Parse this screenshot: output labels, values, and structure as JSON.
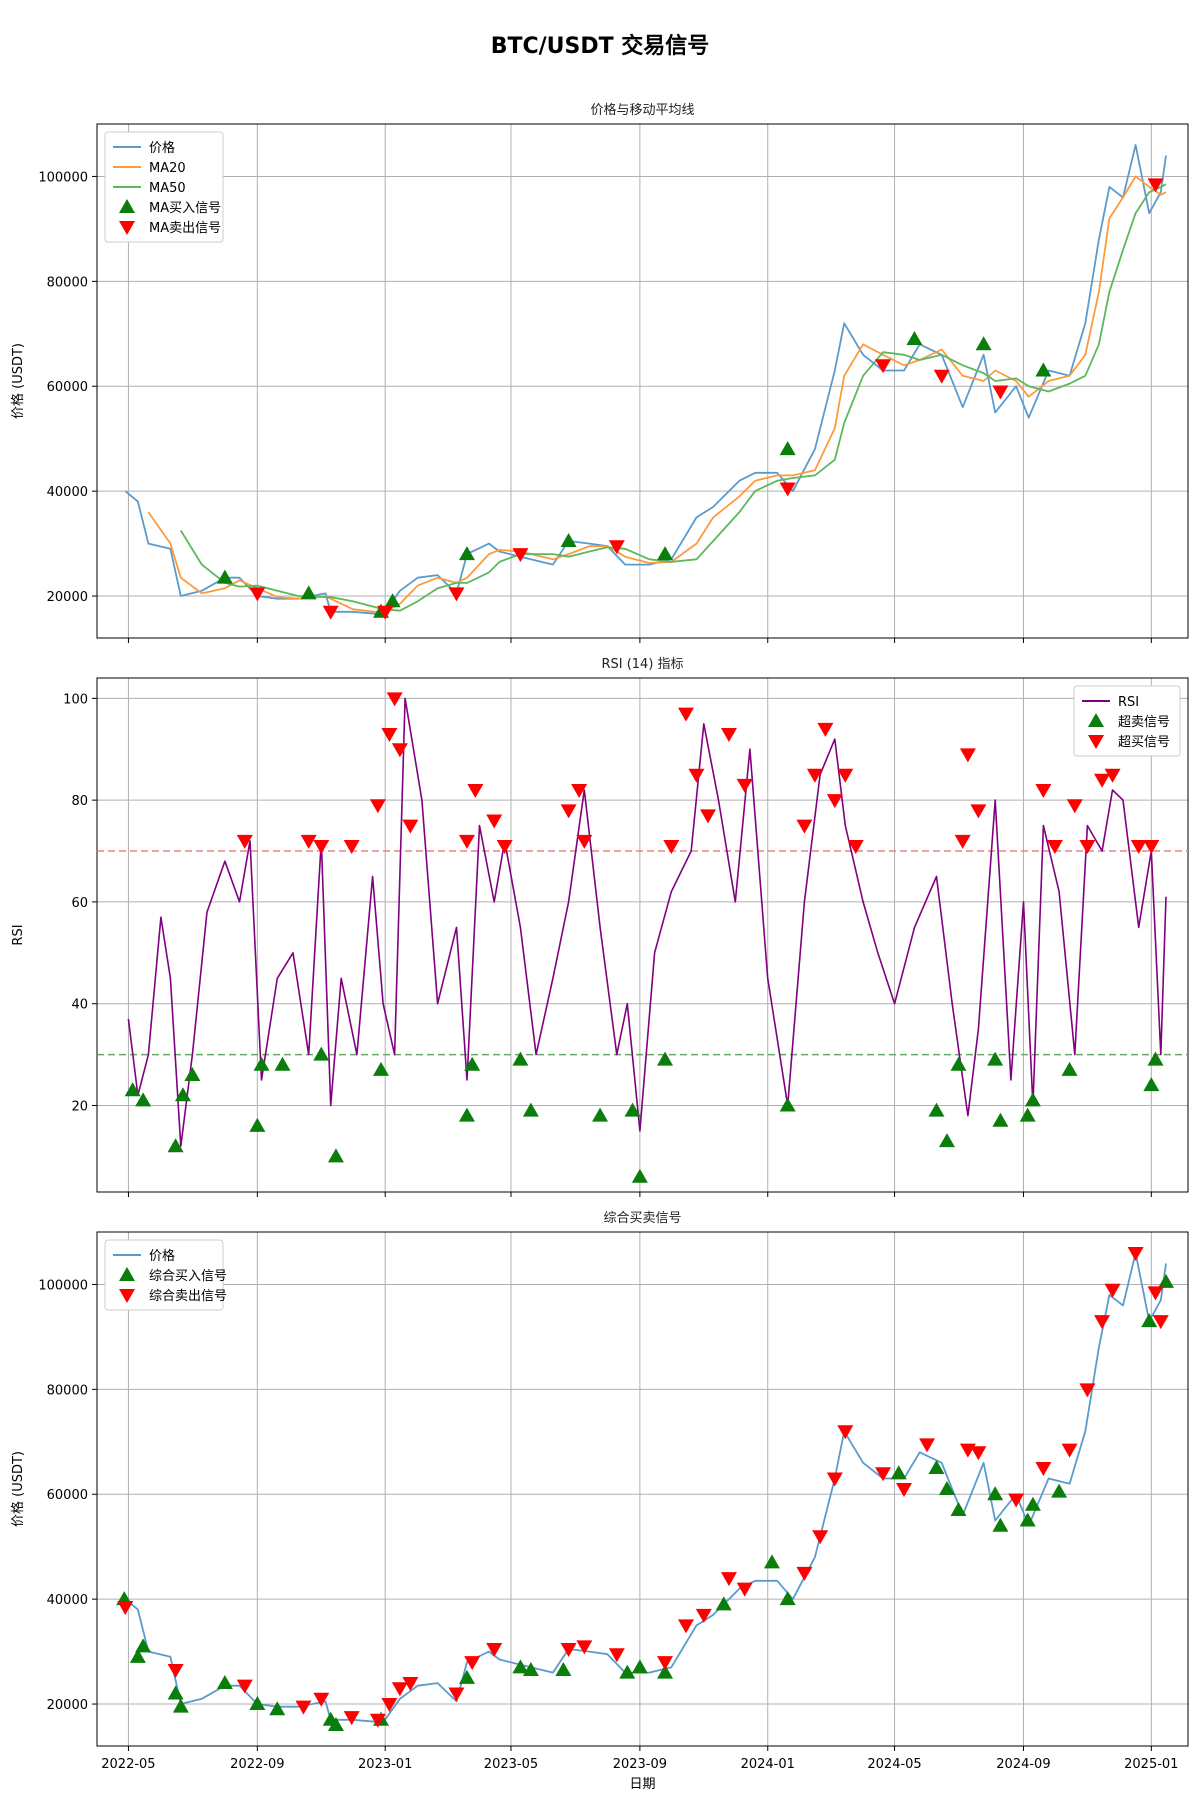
{
  "figure": {
    "title": "BTC/USDT 交易信号"
  },
  "x_axis": {
    "label": "日期",
    "ticks": [
      "2022-05",
      "2022-09",
      "2023-01",
      "2023-05",
      "2023-09",
      "2024-01",
      "2024-05",
      "2024-09",
      "2025-01"
    ]
  },
  "colors": {
    "price": "#5b9bcc",
    "ma20": "#ff9a3c",
    "ma50": "#5cb85c",
    "rsi": "#800080",
    "buy": "#0a7d0a",
    "sell": "#ff0000",
    "overbought_line": "#f08080",
    "oversold_line": "#66aa66",
    "grid": "#b0b0b0"
  },
  "chart_data": [
    {
      "type": "line",
      "title": "价格与移动平均线",
      "ylabel": "价格 (USDT)",
      "ylim": [
        12000,
        110000
      ],
      "yticks": [
        20000,
        40000,
        60000,
        80000,
        100000
      ],
      "grid": true,
      "legend_position": "top-left",
      "legend": [
        "价格",
        "MA20",
        "MA50",
        "MA买入信号",
        "MA卖出信号"
      ],
      "x": [
        "2022-04-28",
        "2022-05-10",
        "2022-05-20",
        "2022-06-10",
        "2022-06-20",
        "2022-07-10",
        "2022-08-01",
        "2022-08-15",
        "2022-09-01",
        "2022-09-20",
        "2022-10-10",
        "2022-11-05",
        "2022-11-10",
        "2022-12-01",
        "2022-12-30",
        "2023-01-15",
        "2023-02-01",
        "2023-02-20",
        "2023-03-10",
        "2023-03-20",
        "2023-04-10",
        "2023-04-20",
        "2023-05-10",
        "2023-06-10",
        "2023-06-25",
        "2023-07-15",
        "2023-08-01",
        "2023-08-18",
        "2023-09-10",
        "2023-10-01",
        "2023-10-25",
        "2023-11-10",
        "2023-12-05",
        "2023-12-20",
        "2024-01-10",
        "2024-01-25",
        "2024-02-15",
        "2024-03-05",
        "2024-03-14",
        "2024-04-01",
        "2024-04-20",
        "2024-05-10",
        "2024-05-25",
        "2024-06-15",
        "2024-07-05",
        "2024-07-25",
        "2024-08-05",
        "2024-08-25",
        "2024-09-06",
        "2024-09-25",
        "2024-10-15",
        "2024-10-30",
        "2024-11-12",
        "2024-11-22",
        "2024-12-05",
        "2024-12-17",
        "2024-12-30",
        "2025-01-10",
        "2025-01-15"
      ],
      "series": [
        {
          "name": "价格",
          "values": [
            40000,
            38000,
            30000,
            29000,
            20000,
            21000,
            23500,
            23500,
            20000,
            19500,
            19500,
            20500,
            17000,
            17000,
            16500,
            21000,
            23500,
            24000,
            20500,
            28000,
            30000,
            28500,
            27500,
            26000,
            30500,
            30000,
            29500,
            26000,
            26000,
            27000,
            35000,
            37000,
            42000,
            43500,
            43500,
            40000,
            48000,
            63000,
            72000,
            66000,
            63000,
            63000,
            68000,
            66000,
            56000,
            66000,
            55000,
            60000,
            54000,
            63000,
            62000,
            72000,
            88000,
            98000,
            96000,
            106000,
            93000,
            97000,
            104000
          ]
        },
        {
          "name": "MA20",
          "values": [
            null,
            null,
            36000,
            30000,
            23500,
            20500,
            21500,
            23000,
            21500,
            19800,
            19500,
            20000,
            19500,
            17500,
            16800,
            18500,
            22000,
            23500,
            22500,
            23500,
            28000,
            28800,
            28500,
            27000,
            28000,
            29500,
            29500,
            27500,
            26300,
            26500,
            30000,
            35000,
            39000,
            42000,
            43000,
            43000,
            44000,
            52000,
            62000,
            68000,
            66000,
            64000,
            65000,
            67000,
            62000,
            61000,
            63000,
            61000,
            58000,
            61000,
            62000,
            66000,
            78000,
            92000,
            96000,
            100000,
            98000,
            96500,
            97000
          ]
        },
        {
          "name": "MA50",
          "values": [
            null,
            null,
            null,
            null,
            32500,
            26000,
            22500,
            21800,
            22000,
            21000,
            20000,
            19800,
            19800,
            19000,
            17500,
            17200,
            19000,
            21500,
            22500,
            22500,
            24500,
            26500,
            28000,
            28000,
            27500,
            28500,
            29300,
            29000,
            27000,
            26500,
            27000,
            30500,
            36000,
            40000,
            42000,
            42500,
            43000,
            46000,
            53000,
            62000,
            66500,
            66000,
            65000,
            66000,
            64000,
            62500,
            61000,
            61500,
            60000,
            59000,
            60500,
            62000,
            68000,
            78000,
            86000,
            93000,
            97000,
            98000,
            98500
          ]
        }
      ],
      "buy_signals": {
        "name": "MA买入信号",
        "x": [
          "2022-08-01",
          "2022-10-20",
          "2022-12-28",
          "2023-01-08",
          "2023-03-20",
          "2023-06-25",
          "2023-09-25",
          "2024-01-20",
          "2024-05-20",
          "2024-07-25",
          "2024-09-20"
        ],
        "y": [
          23500,
          20500,
          17000,
          19000,
          28000,
          30500,
          28000,
          48000,
          69000,
          68000,
          63000
        ]
      },
      "sell_signals": {
        "name": "MA卖出信号",
        "x": [
          "2022-09-01",
          "2022-11-10",
          "2023-01-01",
          "2023-03-10",
          "2023-05-10",
          "2023-08-10",
          "2024-01-20",
          "2024-04-20",
          "2024-06-15",
          "2024-08-10",
          "2025-01-05"
        ],
        "y": [
          20500,
          17000,
          17000,
          20500,
          28000,
          29500,
          40500,
          64000,
          62000,
          59000,
          98500
        ]
      }
    },
    {
      "type": "line",
      "title": "RSI (14) 指标",
      "ylabel": "RSI",
      "ylim": [
        3,
        104
      ],
      "yticks": [
        20,
        40,
        60,
        80,
        100
      ],
      "grid": true,
      "legend_position": "top-right",
      "legend": [
        "RSI",
        "超卖信号",
        "超买信号"
      ],
      "reference_lines": [
        70,
        30
      ],
      "x": [
        "2022-05-01",
        "2022-05-10",
        "2022-05-20",
        "2022-06-01",
        "2022-06-10",
        "2022-06-20",
        "2022-07-01",
        "2022-07-15",
        "2022-08-01",
        "2022-08-15",
        "2022-08-25",
        "2022-09-05",
        "2022-09-20",
        "2022-10-05",
        "2022-10-20",
        "2022-11-01",
        "2022-11-10",
        "2022-11-20",
        "2022-12-05",
        "2022-12-20",
        "2022-12-30",
        "2023-01-10",
        "2023-01-20",
        "2023-02-05",
        "2023-02-20",
        "2023-03-10",
        "2023-03-20",
        "2023-04-01",
        "2023-04-15",
        "2023-04-25",
        "2023-05-10",
        "2023-05-25",
        "2023-06-10",
        "2023-06-25",
        "2023-07-10",
        "2023-07-25",
        "2023-08-10",
        "2023-08-20",
        "2023-09-01",
        "2023-09-15",
        "2023-10-01",
        "2023-10-20",
        "2023-11-01",
        "2023-11-15",
        "2023-12-01",
        "2023-12-15",
        "2024-01-01",
        "2024-01-20",
        "2024-02-05",
        "2024-02-20",
        "2024-03-05",
        "2024-03-15",
        "2024-04-01",
        "2024-04-15",
        "2024-05-01",
        "2024-05-20",
        "2024-06-10",
        "2024-06-25",
        "2024-07-10",
        "2024-07-20",
        "2024-08-05",
        "2024-08-20",
        "2024-09-01",
        "2024-09-10",
        "2024-09-20",
        "2024-10-05",
        "2024-10-20",
        "2024-11-01",
        "2024-11-15",
        "2024-11-25",
        "2024-12-05",
        "2024-12-20",
        "2025-01-01",
        "2025-01-10",
        "2025-01-15"
      ],
      "values": [
        37,
        22,
        30,
        57,
        45,
        12,
        30,
        58,
        68,
        60,
        72,
        25,
        45,
        50,
        30,
        72,
        20,
        45,
        30,
        65,
        40,
        30,
        100,
        80,
        40,
        55,
        25,
        75,
        60,
        72,
        55,
        30,
        45,
        60,
        82,
        55,
        30,
        40,
        15,
        50,
        62,
        70,
        95,
        80,
        60,
        90,
        45,
        20,
        60,
        85,
        92,
        75,
        60,
        50,
        40,
        55,
        65,
        40,
        18,
        35,
        80,
        25,
        60,
        20,
        75,
        62,
        30,
        75,
        70,
        82,
        80,
        55,
        70,
        30,
        61
      ],
      "oversold_signals": {
        "name": "超卖信号",
        "x": [
          "2022-05-05",
          "2022-05-15",
          "2022-06-15",
          "2022-06-22",
          "2022-07-01",
          "2022-09-01",
          "2022-09-05",
          "2022-09-25",
          "2022-11-01",
          "2022-11-15",
          "2022-12-28",
          "2023-03-20",
          "2023-03-25",
          "2023-05-10",
          "2023-05-20",
          "2023-07-25",
          "2023-08-25",
          "2023-09-01",
          "2023-09-25",
          "2024-01-20",
          "2024-06-10",
          "2024-06-20",
          "2024-07-01",
          "2024-08-05",
          "2024-08-10",
          "2024-09-05",
          "2024-09-10",
          "2024-10-15",
          "2025-01-01",
          "2025-01-05"
        ],
        "y": [
          23,
          21,
          12,
          22,
          26,
          16,
          28,
          28,
          30,
          10,
          27,
          18,
          28,
          29,
          19,
          18,
          19,
          6,
          29,
          20,
          19,
          13,
          28,
          29,
          17,
          18,
          21,
          27,
          24,
          29
        ]
      },
      "overbought_signals": {
        "name": "超买信号",
        "x": [
          "2022-08-20",
          "2022-10-20",
          "2022-11-01",
          "2022-11-30",
          "2022-12-25",
          "2023-01-05",
          "2023-01-10",
          "2023-01-15",
          "2023-01-25",
          "2023-03-20",
          "2023-03-28",
          "2023-04-15",
          "2023-04-25",
          "2023-06-25",
          "2023-07-05",
          "2023-07-10",
          "2023-10-01",
          "2023-10-15",
          "2023-10-25",
          "2023-11-05",
          "2023-11-25",
          "2023-12-10",
          "2024-02-05",
          "2024-02-15",
          "2024-02-25",
          "2024-03-05",
          "2024-03-15",
          "2024-03-25",
          "2024-07-05",
          "2024-07-10",
          "2024-07-20",
          "2024-09-20",
          "2024-10-01",
          "2024-10-20",
          "2024-11-01",
          "2024-11-15",
          "2024-11-25",
          "2024-12-20",
          "2025-01-01"
        ],
        "y": [
          72,
          72,
          71,
          71,
          79,
          93,
          100,
          90,
          75,
          72,
          82,
          76,
          71,
          78,
          82,
          72,
          71,
          97,
          85,
          77,
          93,
          83,
          75,
          85,
          94,
          80,
          85,
          71,
          72,
          89,
          78,
          82,
          71,
          79,
          71,
          84,
          85,
          71,
          71
        ]
      }
    },
    {
      "type": "line",
      "title": "综合买卖信号",
      "ylabel": "价格 (USDT)",
      "ylim": [
        12000,
        110000
      ],
      "yticks": [
        20000,
        40000,
        60000,
        80000,
        100000
      ],
      "grid": true,
      "legend_position": "top-left",
      "legend": [
        "价格",
        "综合买入信号",
        "综合卖出信号"
      ],
      "x": [
        "2022-04-28",
        "2022-05-10",
        "2022-05-20",
        "2022-06-10",
        "2022-06-20",
        "2022-07-10",
        "2022-08-01",
        "2022-08-15",
        "2022-09-01",
        "2022-09-20",
        "2022-10-10",
        "2022-11-05",
        "2022-11-10",
        "2022-12-01",
        "2022-12-30",
        "2023-01-15",
        "2023-02-01",
        "2023-02-20",
        "2023-03-10",
        "2023-03-20",
        "2023-04-10",
        "2023-04-20",
        "2023-05-10",
        "2023-06-10",
        "2023-06-25",
        "2023-07-15",
        "2023-08-01",
        "2023-08-18",
        "2023-09-10",
        "2023-10-01",
        "2023-10-25",
        "2023-11-10",
        "2023-12-05",
        "2023-12-20",
        "2024-01-10",
        "2024-01-25",
        "2024-02-15",
        "2024-03-05",
        "2024-03-14",
        "2024-04-01",
        "2024-04-20",
        "2024-05-10",
        "2024-05-25",
        "2024-06-15",
        "2024-07-05",
        "2024-07-25",
        "2024-08-05",
        "2024-08-25",
        "2024-09-06",
        "2024-09-25",
        "2024-10-15",
        "2024-10-30",
        "2024-11-12",
        "2024-11-22",
        "2024-12-05",
        "2024-12-17",
        "2024-12-30",
        "2025-01-10",
        "2025-01-15"
      ],
      "series": [
        {
          "name": "价格",
          "values": [
            40000,
            38000,
            30000,
            29000,
            20000,
            21000,
            23500,
            23500,
            20000,
            19500,
            19500,
            20500,
            17000,
            17000,
            16500,
            21000,
            23500,
            24000,
            20500,
            28000,
            30000,
            28500,
            27500,
            26000,
            30500,
            30000,
            29500,
            26000,
            26000,
            27000,
            35000,
            37000,
            42000,
            43500,
            43500,
            40000,
            48000,
            63000,
            72000,
            66000,
            63000,
            63000,
            68000,
            66000,
            56000,
            66000,
            55000,
            60000,
            54000,
            63000,
            62000,
            72000,
            88000,
            98000,
            96000,
            106000,
            93000,
            97000,
            104000
          ]
        }
      ],
      "buy_signals": {
        "name": "综合买入信号",
        "x": [
          "2022-04-27",
          "2022-05-10",
          "2022-05-15",
          "2022-06-15",
          "2022-06-20",
          "2022-08-01",
          "2022-09-01",
          "2022-09-20",
          "2022-11-10",
          "2022-11-15",
          "2022-12-28",
          "2023-03-20",
          "2023-05-10",
          "2023-05-20",
          "2023-06-20",
          "2023-08-20",
          "2023-09-01",
          "2023-09-25",
          "2023-11-20",
          "2024-01-05",
          "2024-01-20",
          "2024-05-05",
          "2024-06-10",
          "2024-06-20",
          "2024-07-01",
          "2024-08-05",
          "2024-08-10",
          "2024-09-05",
          "2024-09-10",
          "2024-10-05",
          "2024-12-30",
          "2025-01-15"
        ],
        "y": [
          40000,
          29000,
          31000,
          22000,
          19500,
          24000,
          20000,
          19000,
          17000,
          16000,
          17000,
          25000,
          27000,
          26500,
          26500,
          26000,
          27000,
          26000,
          39000,
          47000,
          40000,
          64000,
          65000,
          61000,
          57000,
          60000,
          54000,
          55000,
          58000,
          60500,
          93000,
          100500
        ]
      },
      "sell_signals": {
        "name": "综合卖出信号",
        "x": [
          "2022-04-28",
          "2022-06-15",
          "2022-08-20",
          "2022-10-15",
          "2022-11-01",
          "2022-11-30",
          "2022-12-25",
          "2023-01-05",
          "2023-01-15",
          "2023-01-25",
          "2023-03-10",
          "2023-03-25",
          "2023-04-15",
          "2023-06-25",
          "2023-07-10",
          "2023-08-10",
          "2023-09-25",
          "2023-10-15",
          "2023-11-01",
          "2023-11-25",
          "2023-12-10",
          "2024-02-05",
          "2024-02-20",
          "2024-03-05",
          "2024-03-15",
          "2024-04-20",
          "2024-05-10",
          "2024-06-01",
          "2024-07-10",
          "2024-07-20",
          "2024-08-25",
          "2024-09-20",
          "2024-10-15",
          "2024-11-01",
          "2024-11-15",
          "2024-11-25",
          "2024-12-17",
          "2025-01-05",
          "2025-01-10"
        ],
        "y": [
          38500,
          26500,
          23500,
          19500,
          21000,
          17500,
          17000,
          20000,
          23000,
          24000,
          22000,
          28000,
          30500,
          30500,
          31000,
          29500,
          28000,
          35000,
          37000,
          44000,
          42000,
          45000,
          52000,
          63000,
          72000,
          64000,
          61000,
          69500,
          68500,
          68000,
          59000,
          65000,
          68500,
          80000,
          93000,
          99000,
          106000,
          98500,
          93000
        ]
      }
    }
  ]
}
